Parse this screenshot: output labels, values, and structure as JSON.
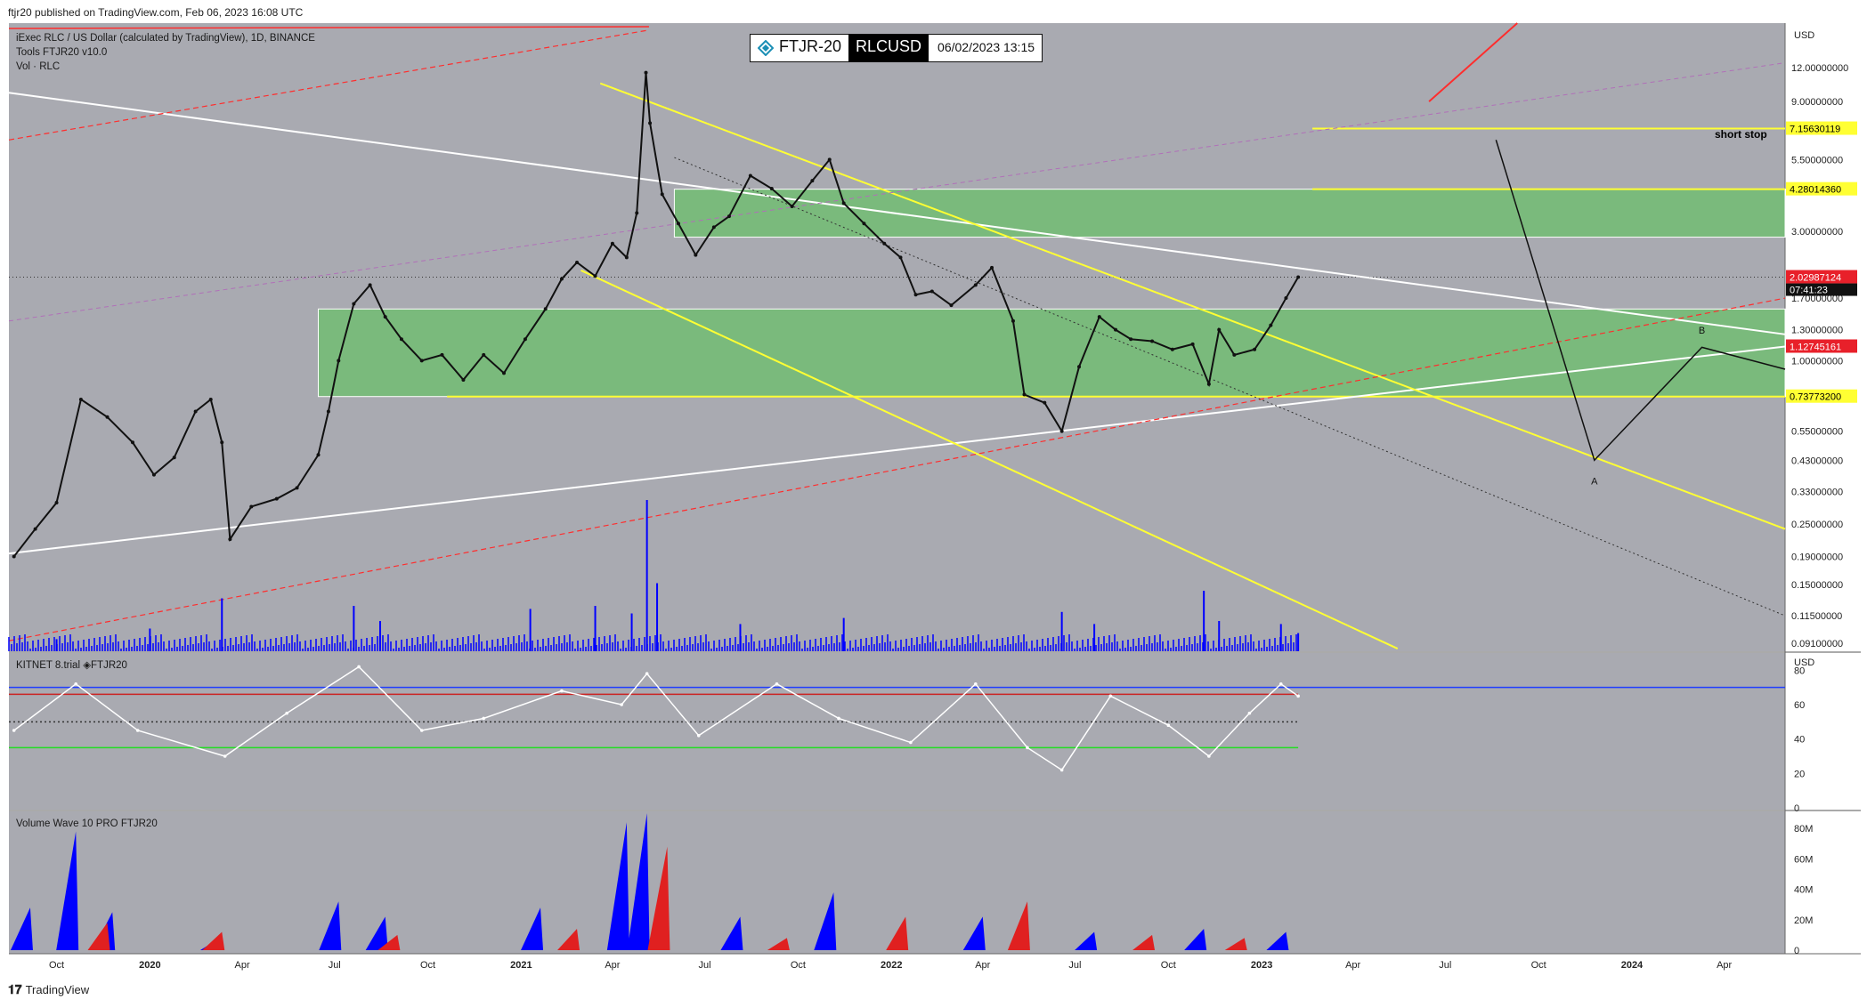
{
  "header": {
    "published": "ftjr20 published on TradingView.com, Feb 06, 2023 16:08 UTC"
  },
  "legend": {
    "line1": "iExec RLC / US Dollar (calculated by TradingView), 1D, BINANCE",
    "line2": "Tools  FTJR20  v10.0",
    "line3": "Vol · RLC",
    "pane2": "KITNET  8.trial  ◈FTJR20",
    "pane3": "Volume Wave 10 PRO FTJR20"
  },
  "badge": {
    "name": "FTJR-20",
    "symbol": "RLCUSD",
    "datetime": "06/02/2023 13:15"
  },
  "footer": {
    "brand": "TradingView"
  },
  "annotations": {
    "short_stop": "short stop",
    "wave_a": "A",
    "wave_b": "B"
  },
  "colors": {
    "panel_bg": "#a9aab1",
    "zone_green": "#6bbf6b",
    "yellow": "#ffff33",
    "red": "#ff2d2d",
    "volume_blue": "#0000ff",
    "white": "#ffffff"
  },
  "chart_data": [
    {
      "type": "line",
      "pane": "price",
      "scale": "log",
      "currency": "USD",
      "ylim": [
        0.0851,
        17.5
      ],
      "xlim": [
        "2019-08-15",
        "2024-05-31"
      ],
      "y_ticks": [
        12.0,
        9.0,
        5.5,
        3.0,
        1.7,
        1.3,
        1.0,
        0.55,
        0.43,
        0.33,
        0.25,
        0.19,
        0.15,
        0.115,
        0.091
      ],
      "y_tick_labels": [
        "12.00000000",
        "9.00000000",
        "5.50000000",
        "3.00000000",
        "1.70000000",
        "1.30000000",
        "1.00000000",
        "0.55000000",
        "0.43000000",
        "0.33000000",
        "0.25000000",
        "0.19000000",
        "0.15000000",
        "0.11500000",
        "0.09100000"
      ],
      "axis_unit": "USD",
      "x_ticks": [
        {
          "date": "2019-10-01",
          "label": "Oct"
        },
        {
          "date": "2020-01-01",
          "label": "2020"
        },
        {
          "date": "2020-04-01",
          "label": "Apr"
        },
        {
          "date": "2020-07-01",
          "label": "Jul"
        },
        {
          "date": "2020-10-01",
          "label": "Oct"
        },
        {
          "date": "2021-01-01",
          "label": "2021"
        },
        {
          "date": "2021-04-01",
          "label": "Apr"
        },
        {
          "date": "2021-07-01",
          "label": "Jul"
        },
        {
          "date": "2021-10-01",
          "label": "Oct"
        },
        {
          "date": "2022-01-01",
          "label": "2022"
        },
        {
          "date": "2022-04-01",
          "label": "Apr"
        },
        {
          "date": "2022-07-01",
          "label": "Jul"
        },
        {
          "date": "2022-10-01",
          "label": "Oct"
        },
        {
          "date": "2023-01-01",
          "label": "2023"
        },
        {
          "date": "2023-04-01",
          "label": "Apr"
        },
        {
          "date": "2023-07-01",
          "label": "Jul"
        },
        {
          "date": "2023-10-01",
          "label": "Oct"
        },
        {
          "date": "2024-01-01",
          "label": "2024"
        },
        {
          "date": "2024-04-01",
          "label": "Apr"
        }
      ],
      "price_series": {
        "name": "RLCUSD",
        "x": [
          "2019-08-20",
          "2019-09-10",
          "2019-10-01",
          "2019-10-25",
          "2019-11-20",
          "2019-12-15",
          "2020-01-05",
          "2020-01-25",
          "2020-02-15",
          "2020-03-01",
          "2020-03-12",
          "2020-03-20",
          "2020-04-10",
          "2020-05-05",
          "2020-05-25",
          "2020-06-15",
          "2020-06-25",
          "2020-07-05",
          "2020-07-20",
          "2020-08-05",
          "2020-08-20",
          "2020-09-05",
          "2020-09-25",
          "2020-10-15",
          "2020-11-05",
          "2020-11-25",
          "2020-12-15",
          "2021-01-05",
          "2021-01-25",
          "2021-02-10",
          "2021-02-25",
          "2021-03-15",
          "2021-04-01",
          "2021-04-15",
          "2021-04-25",
          "2021-05-04",
          "2021-05-08",
          "2021-05-20",
          "2021-06-05",
          "2021-06-22",
          "2021-07-10",
          "2021-07-25",
          "2021-08-15",
          "2021-09-05",
          "2021-09-25",
          "2021-10-15",
          "2021-11-01",
          "2021-11-15",
          "2021-12-05",
          "2021-12-25",
          "2022-01-10",
          "2022-01-25",
          "2022-02-10",
          "2022-03-01",
          "2022-03-25",
          "2022-04-10",
          "2022-05-01",
          "2022-05-12",
          "2022-06-01",
          "2022-06-18",
          "2022-07-05",
          "2022-07-25",
          "2022-08-10",
          "2022-08-25",
          "2022-09-15",
          "2022-10-05",
          "2022-10-25",
          "2022-11-10",
          "2022-11-20",
          "2022-12-05",
          "2022-12-25",
          "2023-01-10",
          "2023-01-25",
          "2023-02-06"
        ],
        "values": [
          0.19,
          0.24,
          0.3,
          0.72,
          0.62,
          0.5,
          0.38,
          0.44,
          0.65,
          0.72,
          0.5,
          0.22,
          0.29,
          0.31,
          0.34,
          0.45,
          0.65,
          1.0,
          1.62,
          1.9,
          1.45,
          1.2,
          1.0,
          1.05,
          0.85,
          1.05,
          0.9,
          1.2,
          1.55,
          2.0,
          2.3,
          2.05,
          2.7,
          2.4,
          3.5,
          11.5,
          7.5,
          4.1,
          3.2,
          2.45,
          3.1,
          3.4,
          4.8,
          4.3,
          3.7,
          4.6,
          5.5,
          3.8,
          3.2,
          2.7,
          2.4,
          1.75,
          1.8,
          1.6,
          1.9,
          2.2,
          1.4,
          0.75,
          0.7,
          0.55,
          0.95,
          1.45,
          1.3,
          1.2,
          1.18,
          1.1,
          1.15,
          0.82,
          1.3,
          1.05,
          1.1,
          1.35,
          1.7,
          2.03
        ]
      },
      "last_price": 2.02987124,
      "countdown": "07:41:23",
      "price_labels": [
        {
          "value": 7.15630119,
          "label": "7.15630119",
          "color": "#ffff33"
        },
        {
          "value": 4.2801436,
          "label": "4.28014360",
          "color": "#ffff33"
        },
        {
          "value": 2.02987124,
          "label": "2.02987124",
          "color": "#e8202a"
        },
        {
          "value": 1.12745161,
          "label": "1.12745161",
          "color": "#e8202a"
        },
        {
          "value": 0.737732,
          "label": "0.73773200",
          "color": "#ffff33"
        }
      ],
      "horizontal_levels": [
        7.15630119,
        4.2801436,
        0.737732
      ],
      "zones": [
        {
          "from": "2021-06-01",
          "to": "2024-05-31",
          "low": 2.85,
          "high": 4.2801436
        },
        {
          "from": "2020-06-15",
          "to": "2024-05-31",
          "low": 0.737732,
          "high": 1.55
        }
      ],
      "trendlines": [
        {
          "style": "white",
          "from": {
            "x": "2019-08-15",
            "y": 9.7
          },
          "to": {
            "x": "2024-05-31",
            "y": 1.25
          }
        },
        {
          "style": "white",
          "from": {
            "x": "2019-08-15",
            "y": 0.195
          },
          "to": {
            "x": "2024-05-31",
            "y": 1.12745161
          }
        },
        {
          "style": "yellow",
          "from": {
            "x": "2021-03-20",
            "y": 10.5
          },
          "to": {
            "x": "2024-05-31",
            "y": 0.24
          }
        },
        {
          "style": "yellow",
          "from": {
            "x": "2021-03-01",
            "y": 2.15
          },
          "to": {
            "x": "2023-05-15",
            "y": 0.087
          }
        },
        {
          "style": "red-dashed",
          "from": {
            "x": "2019-08-15",
            "y": 6.5
          },
          "to": {
            "x": "2021-05-07",
            "y": 16.5
          }
        },
        {
          "style": "red-dashed",
          "from": {
            "x": "2019-08-15",
            "y": 0.093
          },
          "to": {
            "x": "2024-05-31",
            "y": 1.7
          }
        },
        {
          "style": "purple-dashed",
          "from": {
            "x": "2019-08-15",
            "y": 1.4
          },
          "to": {
            "x": "2024-05-31",
            "y": 12.5
          }
        },
        {
          "style": "black-dotted",
          "from": {
            "x": "2021-06-01",
            "y": 5.6
          },
          "to": {
            "x": "2024-05-31",
            "y": 0.115
          }
        },
        {
          "style": "red",
          "from": {
            "x": "2023-06-15",
            "y": 9.0
          },
          "to": {
            "x": "2023-09-10",
            "y": 17.5
          }
        }
      ],
      "projection": {
        "x": [
          "2023-08-20",
          "2023-11-25",
          "2024-03-10",
          "2024-05-31"
        ],
        "values": [
          6.5,
          0.43,
          1.12,
          0.93
        ]
      },
      "wave_labels": [
        {
          "label": "A",
          "x": "2023-11-25",
          "y": 0.35
        },
        {
          "label": "B",
          "x": "2024-03-10",
          "y": 1.26
        }
      ],
      "volume": {
        "name": "Vol · RLC",
        "x": [
          "2019-10-01",
          "2020-01-01",
          "2020-03-12",
          "2020-07-20",
          "2020-08-15",
          "2021-01-10",
          "2021-03-15",
          "2021-04-20",
          "2021-05-05",
          "2021-05-15",
          "2021-08-05",
          "2021-11-15",
          "2022-06-18",
          "2022-07-20",
          "2022-11-05",
          "2022-11-20",
          "2023-01-20",
          "2023-02-06"
        ],
        "values": [
          0.08,
          0.15,
          0.35,
          0.3,
          0.2,
          0.28,
          0.3,
          0.25,
          1.0,
          0.45,
          0.18,
          0.22,
          0.26,
          0.18,
          0.4,
          0.2,
          0.18,
          0.12
        ]
      }
    },
    {
      "type": "line",
      "pane": "KITNET",
      "ylim": [
        0,
        90
      ],
      "y_ticks": [
        80,
        60,
        40,
        20,
        0
      ],
      "axis_unit": "USD",
      "reference_lines": [
        70,
        50,
        35
      ],
      "series": [
        {
          "name": "KITNET",
          "x": [
            "2019-08-20",
            "2019-10-20",
            "2019-12-20",
            "2020-03-15",
            "2020-05-15",
            "2020-07-25",
            "2020-09-25",
            "2020-11-25",
            "2021-02-10",
            "2021-04-10",
            "2021-05-05",
            "2021-06-25",
            "2021-09-10",
            "2021-11-10",
            "2022-01-20",
            "2022-03-25",
            "2022-05-15",
            "2022-06-18",
            "2022-08-05",
            "2022-10-01",
            "2022-11-10",
            "2022-12-20",
            "2023-01-20",
            "2023-02-06"
          ],
          "values": [
            45,
            72,
            45,
            30,
            55,
            82,
            45,
            52,
            68,
            60,
            78,
            42,
            72,
            52,
            38,
            72,
            35,
            22,
            65,
            48,
            30,
            55,
            72,
            65
          ]
        }
      ]
    },
    {
      "type": "bar",
      "pane": "Volume Wave 10 PRO FTJR20",
      "ylim": [
        0,
        90000000
      ],
      "y_ticks": [
        80000000,
        60000000,
        40000000,
        20000000,
        0
      ],
      "y_tick_labels": [
        "80M",
        "60M",
        "40M",
        "20M",
        "0"
      ],
      "series": [
        {
          "name": "up-wave",
          "x": [
            "2019-09-05",
            "2019-10-20",
            "2019-11-25",
            "2020-03-10",
            "2020-07-05",
            "2020-08-20",
            "2021-01-20",
            "2021-04-15",
            "2021-05-05",
            "2021-08-05",
            "2021-11-05",
            "2022-04-01",
            "2022-07-20",
            "2022-11-05",
            "2023-01-25"
          ],
          "values": [
            28000000,
            78000000,
            25000000,
            8000000,
            32000000,
            22000000,
            28000000,
            84000000,
            90000000,
            22000000,
            38000000,
            22000000,
            12000000,
            14000000,
            12000000
          ]
        },
        {
          "name": "down-wave",
          "x": [
            "2019-11-20",
            "2020-03-12",
            "2020-09-01",
            "2021-02-25",
            "2021-05-25",
            "2021-09-20",
            "2022-01-15",
            "2022-05-15",
            "2022-09-15",
            "2022-12-15"
          ],
          "values": [
            18000000,
            12000000,
            10000000,
            14000000,
            68000000,
            8000000,
            22000000,
            32000000,
            10000000,
            8000000
          ]
        }
      ]
    }
  ]
}
